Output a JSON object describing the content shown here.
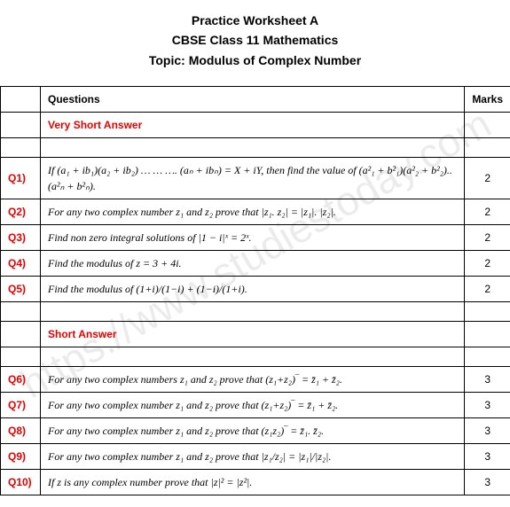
{
  "colors": {
    "text": "#000000",
    "red": "#e60000",
    "border": "#000000",
    "background": "#ffffff",
    "watermark": "rgba(0,0,0,0.08)"
  },
  "typography": {
    "header_fontsize": 14,
    "body_fontsize": 12,
    "watermark_fontsize": 46,
    "font_family": "Arial, sans-serif"
  },
  "watermark": "https://www.studiestoday.com",
  "header": {
    "line1": "Practice Worksheet A",
    "line2": "CBSE Class 11 Mathematics",
    "line3": "Topic: Modulus of Complex Number"
  },
  "table": {
    "headers": {
      "qno": "",
      "question": "Questions",
      "marks": "Marks"
    },
    "sections": {
      "very_short": "Very Short Answer",
      "short": "Short Answer"
    },
    "rows": [
      {
        "qno": "Q1)",
        "question": "If (a₁ + ib₁)(a₂ + ib₂) … … …. (aₙ + ibₙ) = X + iY, then find the value of (a²₁ + b²₁)(a²₂ + b²₂).. (a²ₙ + b²ₙ).",
        "marks": "2"
      },
      {
        "qno": "Q2)",
        "question": "For any two complex number z₁ and z₂ prove that |z₁. z₂| = |z₁|. |z₂|.",
        "marks": "2"
      },
      {
        "qno": "Q3)",
        "question": "Find non zero integral solutions of |1 − i|ˣ = 2ˣ.",
        "marks": "2"
      },
      {
        "qno": "Q4)",
        "question": "Find the modulus of z = 3 + 4i.",
        "marks": "2"
      },
      {
        "qno": "Q5)",
        "question": "Find the modulus of (1+i)/(1−i) + (1−i)/(1+i).",
        "marks": "2"
      },
      {
        "qno": "Q6)",
        "question": "For any two complex numbers z₁ and z₂ prove that  (z₁+z₂)‾ = z̄₁ + z̄₂.",
        "marks": "3"
      },
      {
        "qno": "Q7)",
        "question": "For any two complex number z₁ and z₂ prove that  (z₁+z₂)‾ = z̄₁ + z̄₂.",
        "marks": "3"
      },
      {
        "qno": "Q8)",
        "question": "For any two complex number z₁ and z₂ prove that  (z₁z₂)‾ = z̄₁. z̄₂.",
        "marks": "3"
      },
      {
        "qno": "Q9)",
        "question": "For any two complex number z₁ and z₂ prove that  |z₁/z₂| = |z₁|/|z₂|.",
        "marks": "3"
      },
      {
        "qno": "Q10)",
        "question": "If z is any complex number prove that |z|² = |z²|.",
        "marks": "3"
      }
    ]
  }
}
